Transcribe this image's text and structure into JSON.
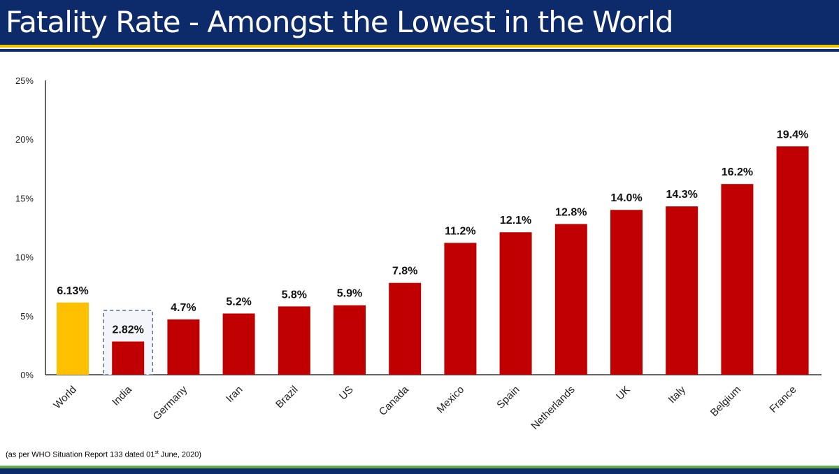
{
  "header": {
    "title": "Fatality Rate - Amongst the Lowest in the World"
  },
  "footer": {
    "source_prefix": "(as per WHO Situation Report 133 dated 01",
    "source_sup": "st",
    "source_suffix": " June, 2020)"
  },
  "colors": {
    "header_bg": "#0d2a6b",
    "accent_gold": "#f2c200",
    "bar_red": "#c00000",
    "bar_world": "#ffc000",
    "footer_green": "#6aa84f"
  },
  "chart_data": {
    "type": "bar",
    "categories": [
      "World",
      "India",
      "Germany",
      "Iran",
      "Brazil",
      "US",
      "Canada",
      "Mexico",
      "Spain",
      "Netherlands",
      "UK",
      "Italy",
      "Belgium",
      "France"
    ],
    "values": [
      6.13,
      2.82,
      4.7,
      5.2,
      5.8,
      5.9,
      7.8,
      11.2,
      12.1,
      12.8,
      14.0,
      14.3,
      16.2,
      19.4
    ],
    "data_labels": [
      "6.13%",
      "2.82%",
      "4.7%",
      "5.2%",
      "5.8%",
      "5.9%",
      "7.8%",
      "11.2%",
      "12.1%",
      "12.8%",
      "14.0%",
      "14.3%",
      "16.2%",
      "19.4%"
    ],
    "highlight": {
      "World": "#ffc000"
    },
    "default_color": "#c00000",
    "boxed_category": "India",
    "yticks": [
      "0%",
      "5%",
      "10%",
      "15%",
      "20%",
      "25%"
    ],
    "ylim": [
      0,
      25
    ],
    "grid": false,
    "legend": "none"
  }
}
